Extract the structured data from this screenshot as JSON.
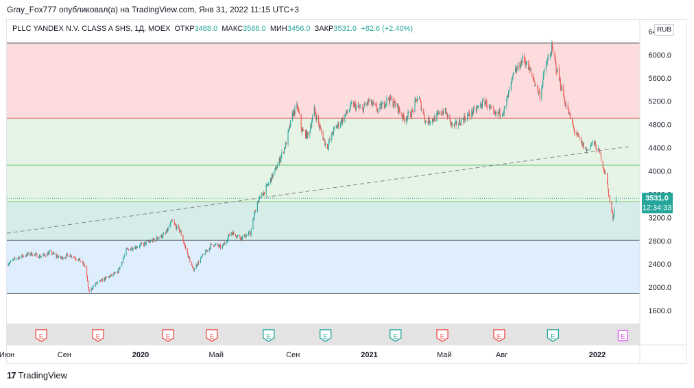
{
  "header": {
    "publisher_line": "Gray_Fox777 опубликовал(а) на TradingView.com, Янв 31, 2022 11:15 UTC+3"
  },
  "legend": {
    "symbol": "PLLC YANDEX N.V. CLASS A SHS, 1Д, MOEX",
    "open_label": "ОТКР",
    "open_value": "3488.0",
    "high_label": "МАКС",
    "high_value": "3566.0",
    "low_label": "МИН",
    "low_value": "3456.0",
    "close_label": "ЗАКР",
    "close_value": "3531.0",
    "change": "+82.6 (+2.40%)"
  },
  "currency": "RUB",
  "price_badge": {
    "price": "3531.0",
    "countdown": "12:34:33"
  },
  "footer": {
    "logo_text": "TradingView"
  },
  "colors": {
    "up": "#26a69a",
    "down": "#ef5350",
    "zone_red": "#fcdcdc",
    "zone_green": "#e6f4e6",
    "zone_teal": "#d5ece9",
    "zone_blue": "#deeefc",
    "line_top": "#4a4a4a",
    "line_red": "#e05050",
    "line_green": "#66bb6a",
    "earnings_red": "#ef5350",
    "earnings_green": "#26a69a",
    "earnings_future": "#e040fb"
  },
  "chart_data": {
    "type": "candlestick",
    "y_axis": {
      "min": 1400,
      "max": 6600,
      "ticks": [
        "1600.0",
        "2000.0",
        "2400.0",
        "2800.0",
        "3200.0",
        "3600.0",
        "4000.0",
        "4400.0",
        "4800.0",
        "5200.0",
        "5600.0",
        "6000.0",
        "6400.0"
      ]
    },
    "x_axis": {
      "range": [
        "2019-06-01",
        "2022-03-10"
      ],
      "labels": [
        {
          "text": "Июн",
          "date": "2019-06-01",
          "bold": false
        },
        {
          "text": "Сен",
          "date": "2019-09-01",
          "bold": false
        },
        {
          "text": "2020",
          "date": "2020-01-01",
          "bold": true
        },
        {
          "text": "Май",
          "date": "2020-05-01",
          "bold": false
        },
        {
          "text": "Сен",
          "date": "2020-09-01",
          "bold": false
        },
        {
          "text": "2021",
          "date": "2021-01-01",
          "bold": true
        },
        {
          "text": "Май",
          "date": "2021-05-01",
          "bold": false
        },
        {
          "text": "Авг",
          "date": "2021-08-01",
          "bold": false
        },
        {
          "text": "2022",
          "date": "2022-01-01",
          "bold": true
        }
      ]
    },
    "zones": [
      {
        "from": 4910,
        "to": 6200,
        "color": "zone_red"
      },
      {
        "from": 3470,
        "to": 4910,
        "color": "zone_green"
      },
      {
        "from": 2810,
        "to": 3470,
        "color": "zone_teal"
      },
      {
        "from": 1890,
        "to": 2810,
        "color": "zone_blue"
      }
    ],
    "horizontal_lines": [
      {
        "y": 6200,
        "color": "line_top"
      },
      {
        "y": 4910,
        "color": "line_red"
      },
      {
        "y": 4100,
        "color": "line_green"
      },
      {
        "y": 3470,
        "color": "line_green"
      },
      {
        "y": 2810,
        "color": "line_top"
      },
      {
        "y": 1890,
        "color": "line_top"
      }
    ],
    "trend_line": {
      "from": {
        "date": "2019-06-01",
        "y": 2930
      },
      "to": {
        "date": "2022-02-20",
        "y": 4420
      }
    },
    "last_price_line": 3531,
    "series_points": [
      [
        "2019-06-01",
        2400
      ],
      [
        "2019-06-20",
        2520
      ],
      [
        "2019-07-10",
        2580
      ],
      [
        "2019-07-25",
        2530
      ],
      [
        "2019-08-10",
        2600
      ],
      [
        "2019-08-25",
        2500
      ],
      [
        "2019-09-10",
        2560
      ],
      [
        "2019-09-25",
        2470
      ],
      [
        "2019-10-05",
        2350
      ],
      [
        "2019-10-10",
        1920
      ],
      [
        "2019-10-20",
        2050
      ],
      [
        "2019-11-05",
        2150
      ],
      [
        "2019-11-25",
        2250
      ],
      [
        "2019-12-10",
        2650
      ],
      [
        "2019-12-31",
        2720
      ],
      [
        "2020-01-20",
        2800
      ],
      [
        "2020-02-10",
        2920
      ],
      [
        "2020-02-20",
        3130
      ],
      [
        "2020-03-05",
        2950
      ],
      [
        "2020-03-15",
        2600
      ],
      [
        "2020-03-25",
        2300
      ],
      [
        "2020-04-10",
        2550
      ],
      [
        "2020-04-25",
        2750
      ],
      [
        "2020-05-10",
        2680
      ],
      [
        "2020-05-25",
        2950
      ],
      [
        "2020-06-10",
        2850
      ],
      [
        "2020-06-25",
        2930
      ],
      [
        "2020-07-05",
        3450
      ],
      [
        "2020-07-20",
        3700
      ],
      [
        "2020-08-05",
        4050
      ],
      [
        "2020-08-20",
        4450
      ],
      [
        "2020-09-01",
        5000
      ],
      [
        "2020-09-08",
        5100
      ],
      [
        "2020-09-15",
        4700
      ],
      [
        "2020-09-25",
        4600
      ],
      [
        "2020-10-05",
        5050
      ],
      [
        "2020-10-15",
        4700
      ],
      [
        "2020-10-25",
        4400
      ],
      [
        "2020-11-05",
        4700
      ],
      [
        "2020-11-20",
        4900
      ],
      [
        "2020-12-05",
        5150
      ],
      [
        "2020-12-20",
        5050
      ],
      [
        "2020-12-31",
        5200
      ],
      [
        "2021-01-15",
        5050
      ],
      [
        "2021-02-01",
        5250
      ],
      [
        "2021-02-15",
        5100
      ],
      [
        "2021-02-25",
        4900
      ],
      [
        "2021-03-10",
        5000
      ],
      [
        "2021-03-20",
        5300
      ],
      [
        "2021-04-01",
        4850
      ],
      [
        "2021-04-15",
        4900
      ],
      [
        "2021-05-01",
        5050
      ],
      [
        "2021-05-15",
        4750
      ],
      [
        "2021-06-01",
        4900
      ],
      [
        "2021-06-20",
        5050
      ],
      [
        "2021-07-05",
        5200
      ],
      [
        "2021-07-20",
        4950
      ],
      [
        "2021-08-05",
        5050
      ],
      [
        "2021-08-20",
        5650
      ],
      [
        "2021-09-05",
        5950
      ],
      [
        "2021-09-20",
        5600
      ],
      [
        "2021-10-01",
        5300
      ],
      [
        "2021-10-10",
        5800
      ],
      [
        "2021-10-20",
        6100
      ],
      [
        "2021-10-28",
        5750
      ],
      [
        "2021-11-10",
        5200
      ],
      [
        "2021-11-25",
        4700
      ],
      [
        "2021-12-05",
        4500
      ],
      [
        "2021-12-15",
        4350
      ],
      [
        "2021-12-25",
        4500
      ],
      [
        "2022-01-05",
        4300
      ],
      [
        "2022-01-15",
        3900
      ],
      [
        "2022-01-22",
        3400
      ],
      [
        "2022-01-26",
        3200
      ],
      [
        "2022-01-31",
        3531
      ]
    ],
    "earnings_markers": [
      {
        "date": "2019-07-26",
        "label": "E",
        "color": "earnings_red"
      },
      {
        "date": "2019-10-25",
        "label": "E",
        "color": "earnings_red"
      },
      {
        "date": "2020-02-14",
        "label": "E",
        "color": "earnings_red"
      },
      {
        "date": "2020-04-24",
        "label": "E",
        "color": "earnings_red"
      },
      {
        "date": "2020-07-24",
        "label": "E",
        "color": "earnings_green"
      },
      {
        "date": "2020-10-23",
        "label": "E",
        "color": "earnings_green"
      },
      {
        "date": "2021-02-12",
        "label": "E",
        "color": "earnings_green"
      },
      {
        "date": "2021-04-28",
        "label": "E",
        "color": "earnings_red"
      },
      {
        "date": "2021-07-28",
        "label": "E",
        "color": "earnings_red"
      },
      {
        "date": "2021-10-22",
        "label": "E",
        "color": "earnings_green"
      },
      {
        "date": "2022-02-11",
        "label": "E",
        "color": "earnings_future"
      }
    ]
  }
}
